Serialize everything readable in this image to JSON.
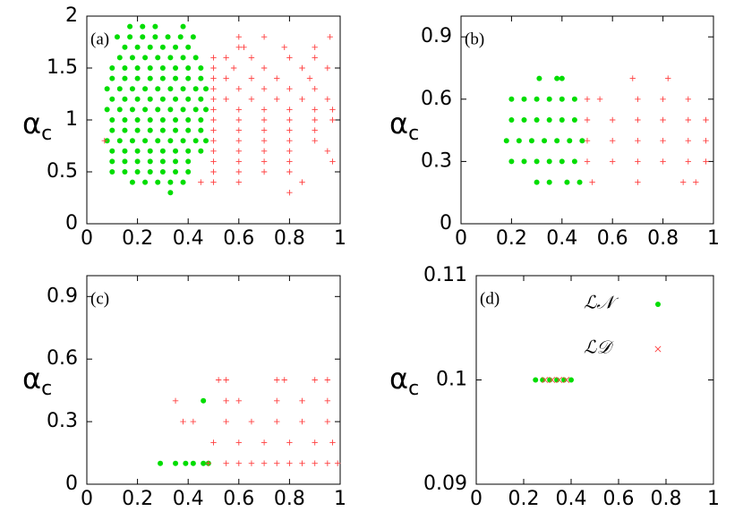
{
  "chart_data": [
    {
      "type": "scatter",
      "label": "(a)",
      "ylabel": {
        "symbol": "α",
        "subscript": "c"
      },
      "xlim": [
        0,
        1
      ],
      "ylim": [
        0,
        2
      ],
      "xticks": [
        0,
        0.2,
        0.4,
        0.6,
        0.8,
        1
      ],
      "yticks": [
        0,
        0.5,
        1,
        1.5,
        2
      ],
      "series": [
        {
          "color": "#00dd00",
          "marker": "circle",
          "x": [
            0.17,
            0.22,
            0.27,
            0.38,
            0.12,
            0.17,
            0.22,
            0.27,
            0.32,
            0.37,
            0.42,
            0.15,
            0.2,
            0.25,
            0.3,
            0.35,
            0.4,
            0.13,
            0.18,
            0.23,
            0.28,
            0.33,
            0.38,
            0.43,
            0.1,
            0.15,
            0.2,
            0.25,
            0.3,
            0.35,
            0.4,
            0.45,
            0.1,
            0.15,
            0.2,
            0.25,
            0.3,
            0.35,
            0.4,
            0.45,
            0.08,
            0.13,
            0.18,
            0.23,
            0.28,
            0.33,
            0.38,
            0.43,
            0.47,
            0.1,
            0.15,
            0.2,
            0.25,
            0.3,
            0.35,
            0.4,
            0.45,
            0.08,
            0.13,
            0.18,
            0.23,
            0.28,
            0.33,
            0.38,
            0.43,
            0.47,
            0.1,
            0.15,
            0.2,
            0.25,
            0.3,
            0.35,
            0.4,
            0.45,
            0.1,
            0.15,
            0.2,
            0.25,
            0.3,
            0.35,
            0.4,
            0.45,
            0.08,
            0.13,
            0.18,
            0.23,
            0.28,
            0.33,
            0.38,
            0.43,
            0.47,
            0.1,
            0.15,
            0.2,
            0.25,
            0.3,
            0.35,
            0.4,
            0.45,
            0.1,
            0.15,
            0.2,
            0.25,
            0.3,
            0.35,
            0.4,
            0.1,
            0.15,
            0.2,
            0.25,
            0.3,
            0.35,
            0.4,
            0.18,
            0.23,
            0.28,
            0.33,
            0.38,
            0.33
          ],
          "values": [
            1.9,
            1.9,
            1.9,
            1.9,
            1.8,
            1.8,
            1.8,
            1.8,
            1.8,
            1.8,
            1.8,
            1.7,
            1.7,
            1.7,
            1.7,
            1.7,
            1.7,
            1.6,
            1.6,
            1.6,
            1.6,
            1.6,
            1.6,
            1.6,
            1.5,
            1.5,
            1.5,
            1.5,
            1.5,
            1.5,
            1.5,
            1.5,
            1.4,
            1.4,
            1.4,
            1.4,
            1.4,
            1.4,
            1.4,
            1.4,
            1.3,
            1.3,
            1.3,
            1.3,
            1.3,
            1.3,
            1.3,
            1.3,
            1.3,
            1.2,
            1.2,
            1.2,
            1.2,
            1.2,
            1.2,
            1.2,
            1.2,
            1.1,
            1.1,
            1.1,
            1.1,
            1.1,
            1.1,
            1.1,
            1.1,
            1.1,
            1,
            1,
            1,
            1,
            1,
            1,
            1,
            1,
            0.9,
            0.9,
            0.9,
            0.9,
            0.9,
            0.9,
            0.9,
            0.9,
            0.8,
            0.8,
            0.8,
            0.8,
            0.8,
            0.8,
            0.8,
            0.8,
            0.8,
            0.7,
            0.7,
            0.7,
            0.7,
            0.7,
            0.7,
            0.7,
            0.7,
            0.6,
            0.6,
            0.6,
            0.6,
            0.6,
            0.6,
            0.6,
            0.5,
            0.5,
            0.5,
            0.5,
            0.5,
            0.5,
            0.5,
            0.4,
            0.4,
            0.4,
            0.4,
            0.4,
            0.3
          ]
        },
        {
          "color": "#ff4040",
          "marker": "plus",
          "x": [
            0.6,
            0.7,
            0.96,
            0.6,
            0.62,
            0.78,
            0.9,
            0.5,
            0.55,
            0.65,
            0.8,
            0.9,
            0.5,
            0.58,
            0.7,
            0.85,
            0.95,
            0.5,
            0.55,
            0.65,
            0.75,
            0.88,
            0.5,
            0.6,
            0.7,
            0.8,
            0.9,
            0.5,
            0.55,
            0.65,
            0.75,
            0.85,
            0.95,
            0.5,
            0.6,
            0.7,
            0.8,
            0.9,
            0.97,
            0.5,
            0.6,
            0.7,
            0.8,
            0.9,
            0.97,
            0.5,
            0.6,
            0.7,
            0.8,
            0.9,
            0.07,
            0.5,
            0.6,
            0.7,
            0.8,
            0.9,
            0.5,
            0.6,
            0.7,
            0.8,
            0.95,
            0.5,
            0.6,
            0.7,
            0.8,
            0.97,
            0.5,
            0.6,
            0.7,
            0.8,
            0.45,
            0.5,
            0.6,
            0.85,
            0.8
          ],
          "values": [
            1.8,
            1.8,
            1.8,
            1.7,
            1.7,
            1.7,
            1.7,
            1.6,
            1.6,
            1.6,
            1.6,
            1.6,
            1.5,
            1.5,
            1.5,
            1.5,
            1.5,
            1.4,
            1.4,
            1.4,
            1.4,
            1.4,
            1.3,
            1.3,
            1.3,
            1.3,
            1.3,
            1.2,
            1.2,
            1.2,
            1.2,
            1.2,
            1.2,
            1.1,
            1.1,
            1.1,
            1.1,
            1.1,
            1.1,
            1,
            1,
            1,
            1,
            1,
            1,
            0.9,
            0.9,
            0.9,
            0.9,
            0.9,
            0.8,
            0.8,
            0.8,
            0.8,
            0.8,
            0.8,
            0.7,
            0.7,
            0.7,
            0.7,
            0.7,
            0.6,
            0.6,
            0.6,
            0.6,
            0.6,
            0.5,
            0.5,
            0.5,
            0.5,
            0.4,
            0.4,
            0.4,
            0.4,
            0.3
          ]
        }
      ]
    },
    {
      "type": "scatter",
      "label": "(b)",
      "ylabel": {
        "symbol": "α",
        "subscript": "c"
      },
      "xlim": [
        0,
        1
      ],
      "ylim": [
        0,
        1
      ],
      "xticks": [
        0,
        0.2,
        0.4,
        0.6,
        0.8,
        1
      ],
      "yticks": [
        0,
        0.3,
        0.6,
        0.9
      ],
      "series": [
        {
          "color": "#00dd00",
          "marker": "circle",
          "x": [
            0.31,
            0.38,
            0.4,
            0.2,
            0.25,
            0.3,
            0.35,
            0.4,
            0.45,
            0.2,
            0.25,
            0.3,
            0.35,
            0.4,
            0.45,
            0.18,
            0.23,
            0.28,
            0.33,
            0.38,
            0.43,
            0.48,
            0.2,
            0.25,
            0.3,
            0.35,
            0.4,
            0.45,
            0.3,
            0.35,
            0.42,
            0.47
          ],
          "values": [
            0.7,
            0.7,
            0.7,
            0.6,
            0.6,
            0.6,
            0.6,
            0.6,
            0.6,
            0.5,
            0.5,
            0.5,
            0.5,
            0.5,
            0.5,
            0.4,
            0.4,
            0.4,
            0.4,
            0.4,
            0.4,
            0.4,
            0.3,
            0.3,
            0.3,
            0.3,
            0.3,
            0.3,
            0.2,
            0.2,
            0.2,
            0.2
          ]
        },
        {
          "color": "#ff4040",
          "marker": "plus",
          "x": [
            0.68,
            0.82,
            0.5,
            0.55,
            0.7,
            0.8,
            0.9,
            0.5,
            0.6,
            0.7,
            0.8,
            0.9,
            0.97,
            0.5,
            0.6,
            0.7,
            0.8,
            0.9,
            0.97,
            0.5,
            0.6,
            0.7,
            0.8,
            0.9,
            0.97,
            0.52,
            0.7,
            0.88,
            0.93
          ],
          "values": [
            0.7,
            0.7,
            0.6,
            0.6,
            0.6,
            0.6,
            0.6,
            0.5,
            0.5,
            0.5,
            0.5,
            0.5,
            0.5,
            0.4,
            0.4,
            0.4,
            0.4,
            0.4,
            0.4,
            0.3,
            0.3,
            0.3,
            0.3,
            0.3,
            0.3,
            0.2,
            0.2,
            0.2,
            0.2
          ]
        }
      ]
    },
    {
      "type": "scatter",
      "label": "(c)",
      "ylabel": {
        "symbol": "α",
        "subscript": "c"
      },
      "xlim": [
        0,
        1
      ],
      "ylim": [
        0,
        1
      ],
      "xticks": [
        0,
        0.2,
        0.4,
        0.6,
        0.8,
        1
      ],
      "yticks": [
        0,
        0.3,
        0.6,
        0.9
      ],
      "series": [
        {
          "color": "#00dd00",
          "marker": "circle",
          "x": [
            0.46,
            0.29,
            0.35,
            0.39,
            0.42,
            0.46,
            0.48
          ],
          "values": [
            0.4,
            0.1,
            0.1,
            0.1,
            0.1,
            0.1,
            0.1
          ]
        },
        {
          "color": "#ff4040",
          "marker": "plus",
          "x": [
            0.52,
            0.55,
            0.75,
            0.78,
            0.9,
            0.95,
            0.35,
            0.55,
            0.6,
            0.75,
            0.85,
            0.95,
            0.38,
            0.42,
            0.55,
            0.65,
            0.75,
            0.85,
            0.95,
            0.5,
            0.6,
            0.7,
            0.8,
            0.9,
            0.97,
            0.48,
            0.55,
            0.6,
            0.65,
            0.7,
            0.75,
            0.8,
            0.85,
            0.9,
            0.95,
            0.99
          ],
          "values": [
            0.5,
            0.5,
            0.5,
            0.5,
            0.5,
            0.5,
            0.4,
            0.4,
            0.4,
            0.4,
            0.4,
            0.4,
            0.3,
            0.3,
            0.3,
            0.3,
            0.3,
            0.3,
            0.3,
            0.2,
            0.2,
            0.2,
            0.2,
            0.2,
            0.2,
            0.1,
            0.1,
            0.1,
            0.1,
            0.1,
            0.1,
            0.1,
            0.1,
            0.1,
            0.1,
            0.1
          ]
        }
      ]
    },
    {
      "type": "scatter",
      "label": "(d)",
      "ylabel": {
        "symbol": "α",
        "subscript": "c"
      },
      "xlim": [
        0,
        1
      ],
      "ylim": [
        0.09,
        0.11
      ],
      "xticks": [
        0,
        0.2,
        0.4,
        0.6,
        0.8,
        1
      ],
      "yticks": [
        0.09,
        0.1,
        0.11
      ],
      "series": [
        {
          "name": "ℒ𝒩",
          "color": "#00dd00",
          "marker": "circle",
          "x": [
            0.25,
            0.28,
            0.31,
            0.34,
            0.37,
            0.4
          ],
          "values": [
            0.1,
            0.1,
            0.1,
            0.1,
            0.1,
            0.1
          ]
        },
        {
          "name": "ℒ𝒟",
          "color": "#ff4040",
          "marker": "cross",
          "x": [
            0.29,
            0.32,
            0.35,
            0.38
          ],
          "values": [
            0.1,
            0.1,
            0.1,
            0.1
          ]
        }
      ]
    }
  ]
}
